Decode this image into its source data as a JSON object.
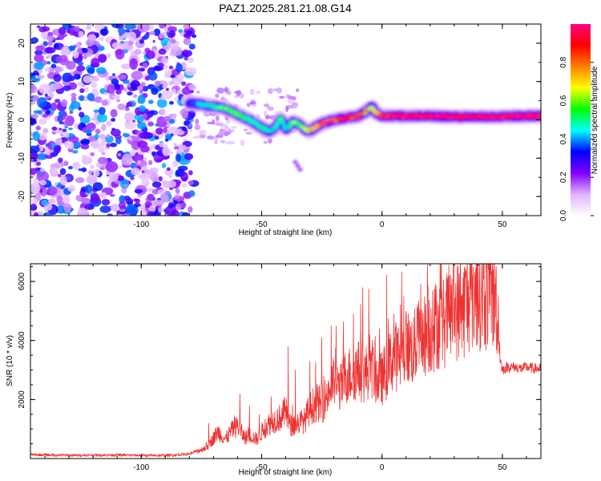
{
  "figure_title": "PAZ1.2025.281.21.08.G14",
  "chart_data": [
    {
      "type": "heatmap",
      "title": "PAZ1.2025.281.21.08.G14",
      "xlabel": "Height of straight line (km)",
      "ylabel": "Frequency (Hz)",
      "xlim": [
        -146,
        66
      ],
      "ylim": [
        -25,
        25
      ],
      "xticks": [
        -100,
        -50,
        0,
        50
      ],
      "yticks": [
        -20,
        -10,
        0,
        10,
        20
      ],
      "colorbar": {
        "label": "Normalized spectral amplitude",
        "range": [
          0,
          1
        ],
        "ticks": [
          "0.0",
          "0.2",
          "0.4",
          "0.6",
          "0.8"
        ],
        "stops": [
          "#ffffff",
          "#e0b3ff",
          "#8000ff",
          "#0000ff",
          "#00ffff",
          "#00ff00",
          "#ffff00",
          "#ff8000",
          "#ff0000",
          "#ff0080"
        ]
      },
      "noise_region_km": [
        -146,
        -78
      ],
      "signal_track": {
        "x": [
          -80,
          -75,
          -70,
          -65,
          -60,
          -55,
          -50,
          -47,
          -44,
          -42,
          -40,
          -37,
          -35,
          -32,
          -30,
          -28,
          -25,
          -20,
          -15,
          -10,
          -7,
          -5,
          -4,
          -3,
          0,
          5,
          10,
          20,
          30,
          40,
          50,
          60,
          66
        ],
        "freq": [
          4.5,
          4.0,
          3.5,
          3.0,
          1.5,
          0.0,
          -2.0,
          -3.0,
          -2.0,
          0.5,
          -2.5,
          -0.5,
          -1.0,
          -2.5,
          -3.0,
          -2.0,
          -1.0,
          0.0,
          0.5,
          1.0,
          2.0,
          3.0,
          3.5,
          2.0,
          1.0,
          1.0,
          1.0,
          1.0,
          0.8,
          0.8,
          0.8,
          1.0,
          1.0
        ],
        "amplitude": [
          0.3,
          0.4,
          0.45,
          0.5,
          0.5,
          0.45,
          0.45,
          0.4,
          0.45,
          0.5,
          0.4,
          0.55,
          0.5,
          0.6,
          0.65,
          0.7,
          0.8,
          0.85,
          0.9,
          0.85,
          0.7,
          0.6,
          0.55,
          0.7,
          0.9,
          0.95,
          0.95,
          0.95,
          0.95,
          0.95,
          0.95,
          0.95,
          0.95
        ]
      }
    },
    {
      "type": "line",
      "xlabel": "Height of straight line (km)",
      "ylabel": "SNR (10 * v/v)",
      "xlim": [
        -146,
        66
      ],
      "ylim": [
        0,
        6600
      ],
      "xticks": [
        -100,
        -50,
        0,
        50
      ],
      "yticks": [
        2000,
        4000,
        6000
      ],
      "color": "#ee3333",
      "series": [
        {
          "name": "SNR",
          "x": [
            -146,
            -130,
            -110,
            -95,
            -85,
            -80,
            -75,
            -72,
            -70,
            -68,
            -65,
            -62,
            -60,
            -57,
            -55,
            -52,
            -50,
            -48,
            -45,
            -42,
            -40,
            -38,
            -35,
            -32,
            -30,
            -27,
            -25,
            -22,
            -20,
            -17,
            -15,
            -12,
            -10,
            -7,
            -5,
            -2,
            0,
            3,
            5,
            8,
            10,
            13,
            15,
            18,
            20,
            23,
            25,
            28,
            30,
            33,
            35,
            38,
            40,
            43,
            45,
            47,
            48,
            49,
            50,
            52,
            55,
            58,
            60,
            63,
            66
          ],
          "y": [
            130,
            110,
            120,
            100,
            120,
            160,
            300,
            450,
            700,
            900,
            650,
            1000,
            1100,
            700,
            800,
            650,
            900,
            1100,
            1300,
            1400,
            1600,
            1100,
            1200,
            1300,
            1700,
            1900,
            1800,
            2300,
            2600,
            2400,
            2800,
            2900,
            3000,
            2800,
            3200,
            2700,
            2700,
            3200,
            3500,
            3400,
            3800,
            3700,
            4000,
            4200,
            4300,
            4600,
            4500,
            4900,
            5100,
            4900,
            5300,
            5500,
            5600,
            5500,
            5650,
            5400,
            5200,
            3400,
            3000,
            3100,
            3100,
            3050,
            3100,
            3050,
            3050
          ],
          "spikes": [
            {
              "x": -72,
              "y": 1200
            },
            {
              "x": -59,
              "y": 2200
            },
            {
              "x": -55,
              "y": 1800
            },
            {
              "x": -51,
              "y": 1500
            },
            {
              "x": -46,
              "y": 2100
            },
            {
              "x": -39,
              "y": 3800
            },
            {
              "x": -36,
              "y": 3000
            },
            {
              "x": -30,
              "y": 3300
            },
            {
              "x": -25,
              "y": 4100
            },
            {
              "x": -19,
              "y": 4500
            },
            {
              "x": -12,
              "y": 3400
            },
            {
              "x": -8,
              "y": 5800
            },
            {
              "x": -1,
              "y": 4400
            },
            {
              "x": 5,
              "y": 4900
            },
            {
              "x": 9,
              "y": 5500
            },
            {
              "x": 15,
              "y": 4700
            },
            {
              "x": 21,
              "y": 5700
            },
            {
              "x": 27,
              "y": 6100
            },
            {
              "x": 35,
              "y": 6300
            },
            {
              "x": 38,
              "y": 6500
            },
            {
              "x": 47,
              "y": 5900
            }
          ]
        }
      ]
    }
  ]
}
